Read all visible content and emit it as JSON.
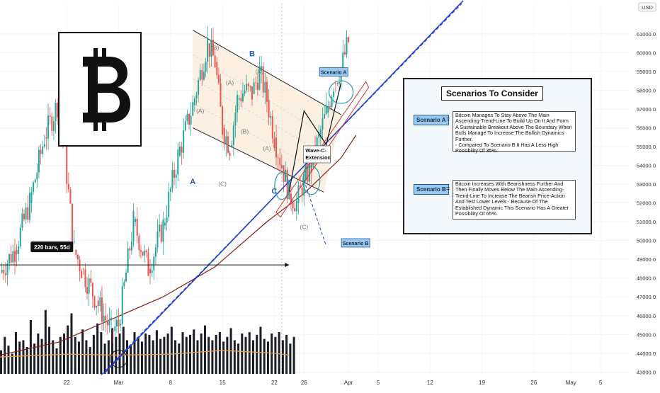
{
  "currency": "USD",
  "logo_icon": "bitcoin-icon",
  "chart_data": {
    "type": "candlestick",
    "price_axis": {
      "ticks": [
        "61000.0",
        "60000.0",
        "59000.0",
        "58000.0",
        "57000.0",
        "56000.0",
        "55000.0",
        "54000.0",
        "53000.0",
        "52000.0",
        "51000.0",
        "50000.0",
        "49000.0",
        "48000.0",
        "47000.0",
        "46000.0",
        "45000.0",
        "44000.0",
        "43000.0"
      ],
      "range": [
        42900,
        62200
      ]
    },
    "time_axis": {
      "labels": [
        "22",
        "Mar",
        "8",
        "15",
        "22",
        "26",
        "Apr",
        "5",
        "12",
        "19",
        "26",
        "May",
        "5"
      ],
      "dates": [
        "2021-02-22",
        "2021-03-01",
        "2021-03-08",
        "2021-03-15",
        "2021-03-22",
        "2021-03-26",
        "2021-04-01",
        "2021-04-05",
        "2021-04-12",
        "2021-04-19",
        "2021-04-26",
        "2021-05-01",
        "2021-05-05"
      ],
      "range": [
        "2021-02-13",
        "2021-05-09"
      ]
    },
    "price_path": {
      "dates": [
        "2021-02-13",
        "2021-02-15",
        "2021-02-17",
        "2021-02-19",
        "2021-02-21",
        "2021-02-23",
        "2021-02-24",
        "2021-02-26",
        "2021-02-28",
        "2021-03-01",
        "2021-03-03",
        "2021-03-05",
        "2021-03-07",
        "2021-03-09",
        "2021-03-11",
        "2021-03-13",
        "2021-03-14",
        "2021-03-15",
        "2021-03-16",
        "2021-03-17",
        "2021-03-18",
        "2021-03-19",
        "2021-03-20",
        "2021-03-21",
        "2021-03-22",
        "2021-03-23",
        "2021-03-24",
        "2021-03-25",
        "2021-03-26",
        "2021-03-27",
        "2021-03-28",
        "2021-03-29",
        "2021-03-30",
        "2021-03-31",
        "2021-04-01"
      ],
      "close": [
        48300,
        49500,
        52000,
        55500,
        57500,
        49500,
        48500,
        46800,
        45200,
        45500,
        51000,
        48500,
        50800,
        54500,
        57200,
        60500,
        59500,
        56000,
        55000,
        57500,
        58000,
        57800,
        59000,
        57500,
        55500,
        54000,
        52500,
        52000,
        53200,
        54000,
        55500,
        56800,
        58400,
        59200,
        60600
      ]
    },
    "moving_averages": [
      {
        "dates": [
          "2021-02-13",
          "2021-02-21",
          "2021-02-28",
          "2021-03-07",
          "2021-03-14",
          "2021-03-21",
          "2021-03-26",
          "2021-03-31",
          "2021-04-02"
        ],
        "values": [
          43900,
          44600,
          45800,
          47000,
          48600,
          51000,
          52500,
          54400,
          55600
        ]
      },
      {
        "dates": [
          "2021-02-13",
          "2021-02-22",
          "2021-03-01",
          "2021-03-08",
          "2021-03-15",
          "2021-03-22",
          "2021-03-24"
        ],
        "values": [
          43800,
          43950,
          43900,
          43950,
          44150,
          44000,
          43900
        ]
      }
    ],
    "trendline": {
      "dates": [
        "2021-02-27",
        "2021-04-05"
      ],
      "values": [
        42900,
        62200
      ]
    },
    "volume_relative": [
      0.35,
      0.55,
      0.42,
      0.3,
      0.62,
      0.48,
      0.5,
      0.4,
      0.8,
      0.45,
      0.6,
      0.52,
      0.95,
      0.7,
      0.5,
      0.38,
      0.55,
      0.6,
      0.72,
      0.9,
      0.55,
      0.48,
      0.66,
      0.5,
      0.4,
      0.58,
      0.75,
      0.62,
      0.45,
      0.5,
      0.68,
      0.55,
      0.6,
      0.7,
      0.5,
      0.42,
      0.62,
      0.55,
      0.48,
      0.6,
      0.58,
      0.5,
      0.65,
      0.52,
      0.55,
      0.6,
      0.7,
      0.5,
      0.45,
      0.62,
      0.55,
      0.58,
      0.66,
      0.5,
      0.6,
      0.72,
      0.55,
      0.5,
      0.58,
      0.62,
      0.48,
      0.55,
      0.68,
      0.5,
      0.45,
      0.6,
      0.55,
      0.62,
      0.5,
      0.58,
      0.7,
      0.52,
      0.48,
      0.6,
      0.55,
      0.62,
      0.5,
      0.58,
      0.45,
      0.55
    ]
  },
  "annotations": {
    "range_label": "220 bars, 55d",
    "wave_labels": [
      "(B)",
      "B",
      "(C)",
      "(A)",
      "(A)",
      "(B)",
      "(A)",
      "(C)",
      "A",
      "C",
      "(C)"
    ],
    "wave_extension": "Wave-C-\nExtension",
    "scenario_a_tag": "Scenario A",
    "scenario_b_tag": "Scenario B"
  },
  "scenarios_panel": {
    "title": "Scenarios To Consider",
    "eq": "=",
    "a_label": "Scenario A",
    "a_text": "Bitcoin Manages To Stay Above The Main Ascending-Trend-Line To Build Up On It And Form A Sustainable Breakout Above The Boundary When Bulls Manage To Increase The Bullish Dynamics Further.\n- Compared To Scenario B It Has A Less High Possibility Of 35%.",
    "b_label": "Scenario B",
    "b_text": "Bitcoin Increases With Bearishness Further And Then Finally Moves Below The Main Ascending-Trend-Line To Increase The Bearish Price-Action And Test Lower Levels - Because Of The Established Dynamic This Scenario Has A Greater Possibility Of 65%."
  },
  "colors": {
    "up": "#26a69a",
    "down": "#ef5350",
    "trend_blue": "#1f3fcf",
    "channel_fill": "#fbe9d6",
    "ma_orange": "#f0a040",
    "ma_brown": "#8b1a10",
    "red_channel": "#d23a2a",
    "teal_circle": "#2a9bb0",
    "volume": "#1a1d26"
  }
}
